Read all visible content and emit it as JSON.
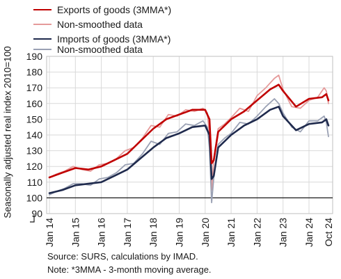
{
  "legend": [
    {
      "label": "Exports of goods (3MMA*)",
      "color": "#c00000",
      "width": 2.5
    },
    {
      "label": "Non-smoothed data",
      "color": "#e59a9a",
      "width": 2
    },
    {
      "label": "Imports of goods (3MMA*)",
      "color": "#1f2a4d",
      "width": 2.5
    },
    {
      "label": "Non-smoothed data",
      "color": "#9aa1b4",
      "width": 2
    }
  ],
  "notes": {
    "source": "Source: SURS, calculations by IMAD.",
    "note": "Note: *3MMA - 3-month moving average."
  },
  "chart_data": {
    "type": "line",
    "title": "",
    "ylabel": "Seasonally adjusted real index 2010=100",
    "xlabel": "",
    "ylim": [
      90,
      190
    ],
    "yticks": [
      90,
      100,
      110,
      120,
      130,
      140,
      150,
      160,
      170,
      180,
      190
    ],
    "axis_break": true,
    "reference_line": 100,
    "x_tick_labels": [
      "Jan 14",
      "Jan 15",
      "Jan 16",
      "Jan 17",
      "Jan 18",
      "Jan 19",
      "Jan 20",
      "Jan 21",
      "Jan 22",
      "Jan 23",
      "Jan 24",
      "Oct 24"
    ],
    "grid": true,
    "colors": {
      "exports": "#c00000",
      "exports_raw": "#e59a9a",
      "imports": "#1f2a4d",
      "imports_raw": "#9aa1b4"
    },
    "series": [
      {
        "name": "Exports of goods (3MMA*)",
        "key": "exports",
        "points": [
          [
            "2014-01",
            113
          ],
          [
            "2014-07",
            116
          ],
          [
            "2015-01",
            119
          ],
          [
            "2015-07",
            118
          ],
          [
            "2016-01",
            120
          ],
          [
            "2016-07",
            124
          ],
          [
            "2017-01",
            128
          ],
          [
            "2017-07",
            136
          ],
          [
            "2018-01",
            144
          ],
          [
            "2018-07",
            150
          ],
          [
            "2019-01",
            153
          ],
          [
            "2019-07",
            156
          ],
          [
            "2020-01",
            156
          ],
          [
            "2020-03",
            150
          ],
          [
            "2020-04",
            122
          ],
          [
            "2020-05",
            124
          ],
          [
            "2020-07",
            142
          ],
          [
            "2021-01",
            150
          ],
          [
            "2021-07",
            155
          ],
          [
            "2022-01",
            162
          ],
          [
            "2022-07",
            169
          ],
          [
            "2022-11",
            172
          ],
          [
            "2023-01",
            168
          ],
          [
            "2023-07",
            158
          ],
          [
            "2024-01",
            163
          ],
          [
            "2024-07",
            164
          ],
          [
            "2024-09",
            166
          ],
          [
            "2024-10",
            162
          ]
        ]
      },
      {
        "name": "Non-smoothed data",
        "key": "exports_raw",
        "points": [
          [
            "2014-01",
            113
          ],
          [
            "2014-04",
            115
          ],
          [
            "2014-08",
            117
          ],
          [
            "2014-12",
            120
          ],
          [
            "2015-04",
            118
          ],
          [
            "2015-08",
            117
          ],
          [
            "2015-12",
            121
          ],
          [
            "2016-04",
            122
          ],
          [
            "2016-08",
            125
          ],
          [
            "2016-12",
            130
          ],
          [
            "2017-04",
            132
          ],
          [
            "2017-08",
            138
          ],
          [
            "2017-12",
            146
          ],
          [
            "2018-04",
            145
          ],
          [
            "2018-08",
            153
          ],
          [
            "2018-12",
            152
          ],
          [
            "2019-04",
            156
          ],
          [
            "2019-08",
            155
          ],
          [
            "2019-12",
            157
          ],
          [
            "2020-02",
            154
          ],
          [
            "2020-03",
            140
          ],
          [
            "2020-04",
            105
          ],
          [
            "2020-05",
            125
          ],
          [
            "2020-07",
            144
          ],
          [
            "2020-10",
            147
          ],
          [
            "2021-01",
            151
          ],
          [
            "2021-05",
            157
          ],
          [
            "2021-09",
            155
          ],
          [
            "2022-01",
            165
          ],
          [
            "2022-05",
            170
          ],
          [
            "2022-09",
            176
          ],
          [
            "2022-11",
            178
          ],
          [
            "2023-01",
            169
          ],
          [
            "2023-05",
            158
          ],
          [
            "2023-09",
            157
          ],
          [
            "2024-01",
            162
          ],
          [
            "2024-05",
            164
          ],
          [
            "2024-08",
            170
          ],
          [
            "2024-09",
            168
          ],
          [
            "2024-10",
            160
          ]
        ]
      },
      {
        "name": "Imports of goods (3MMA*)",
        "key": "imports",
        "points": [
          [
            "2014-01",
            103
          ],
          [
            "2014-07",
            105
          ],
          [
            "2015-01",
            108
          ],
          [
            "2015-07",
            109
          ],
          [
            "2016-01",
            110
          ],
          [
            "2016-07",
            114
          ],
          [
            "2017-01",
            118
          ],
          [
            "2017-07",
            125
          ],
          [
            "2018-01",
            132
          ],
          [
            "2018-07",
            138
          ],
          [
            "2019-01",
            141
          ],
          [
            "2019-07",
            145
          ],
          [
            "2020-01",
            146
          ],
          [
            "2020-03",
            140
          ],
          [
            "2020-04",
            112
          ],
          [
            "2020-05",
            114
          ],
          [
            "2020-07",
            132
          ],
          [
            "2021-01",
            140
          ],
          [
            "2021-07",
            146
          ],
          [
            "2022-01",
            150
          ],
          [
            "2022-07",
            156
          ],
          [
            "2022-11",
            158
          ],
          [
            "2023-01",
            152
          ],
          [
            "2023-07",
            143
          ],
          [
            "2024-01",
            147
          ],
          [
            "2024-07",
            148
          ],
          [
            "2024-09",
            150
          ],
          [
            "2024-10",
            146
          ]
        ]
      },
      {
        "name": "Non-smoothed data",
        "key": "imports_raw",
        "points": [
          [
            "2014-01",
            102
          ],
          [
            "2014-04",
            104
          ],
          [
            "2014-08",
            106
          ],
          [
            "2014-12",
            109
          ],
          [
            "2015-04",
            109
          ],
          [
            "2015-08",
            108
          ],
          [
            "2015-12",
            112
          ],
          [
            "2016-04",
            113
          ],
          [
            "2016-08",
            116
          ],
          [
            "2016-12",
            121
          ],
          [
            "2017-04",
            122
          ],
          [
            "2017-08",
            128
          ],
          [
            "2017-12",
            136
          ],
          [
            "2018-04",
            134
          ],
          [
            "2018-08",
            141
          ],
          [
            "2018-12",
            142
          ],
          [
            "2019-04",
            147
          ],
          [
            "2019-08",
            146
          ],
          [
            "2019-12",
            149
          ],
          [
            "2020-02",
            145
          ],
          [
            "2020-03",
            132
          ],
          [
            "2020-04",
            97
          ],
          [
            "2020-05",
            113
          ],
          [
            "2020-07",
            134
          ],
          [
            "2020-10",
            138
          ],
          [
            "2021-01",
            141
          ],
          [
            "2021-05",
            148
          ],
          [
            "2021-09",
            147
          ],
          [
            "2022-01",
            152
          ],
          [
            "2022-05",
            158
          ],
          [
            "2022-09",
            163
          ],
          [
            "2022-11",
            160
          ],
          [
            "2023-01",
            154
          ],
          [
            "2023-05",
            145
          ],
          [
            "2023-09",
            142
          ],
          [
            "2024-01",
            149
          ],
          [
            "2024-05",
            149
          ],
          [
            "2024-08",
            152
          ],
          [
            "2024-09",
            148
          ],
          [
            "2024-10",
            139
          ]
        ]
      }
    ]
  }
}
